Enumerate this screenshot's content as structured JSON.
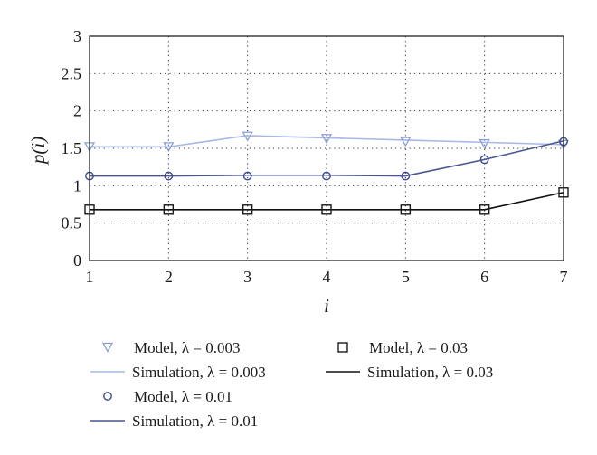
{
  "chart_data": {
    "type": "line",
    "xlabel": "i",
    "ylabel": "p(i)",
    "x": [
      1,
      2,
      3,
      4,
      5,
      6,
      7
    ],
    "xlim": [
      1,
      7
    ],
    "ylim": [
      0,
      3
    ],
    "xticks": [
      "1",
      "2",
      "3",
      "4",
      "5",
      "6",
      "7"
    ],
    "yticks": [
      "0",
      "0.5",
      "1",
      "1.5",
      "2",
      "2.5",
      "3"
    ],
    "grid": "dotted",
    "legend_position": "bottom",
    "series": [
      {
        "name": "Model, λ = 0.003",
        "kind": "markers",
        "marker": "triangle-down",
        "color": "#8a9fd6",
        "values": [
          1.52,
          1.52,
          1.66,
          1.63,
          1.59,
          1.56,
          1.55
        ]
      },
      {
        "name": "Simulation, λ = 0.003",
        "kind": "line",
        "color": "#a9b9e3",
        "values": [
          1.52,
          1.52,
          1.67,
          1.64,
          1.61,
          1.58,
          1.55
        ]
      },
      {
        "name": "Model, λ = 0.01",
        "kind": "markers",
        "marker": "circle",
        "color": "#3d4a8f",
        "values": [
          1.13,
          1.13,
          1.13,
          1.13,
          1.13,
          1.35,
          1.59
        ]
      },
      {
        "name": "Simulation, λ = 0.01",
        "kind": "line",
        "color": "#4a5591",
        "values": [
          1.13,
          1.13,
          1.14,
          1.14,
          1.13,
          1.35,
          1.6
        ]
      },
      {
        "name": "Model, λ = 0.03",
        "kind": "markers",
        "marker": "square",
        "color": "#1a1a1a",
        "values": [
          0.68,
          0.68,
          0.68,
          0.68,
          0.68,
          0.68,
          0.91
        ]
      },
      {
        "name": "Simulation, λ = 0.03",
        "kind": "line",
        "color": "#111111",
        "values": [
          0.68,
          0.68,
          0.68,
          0.68,
          0.68,
          0.68,
          0.91
        ]
      }
    ]
  }
}
